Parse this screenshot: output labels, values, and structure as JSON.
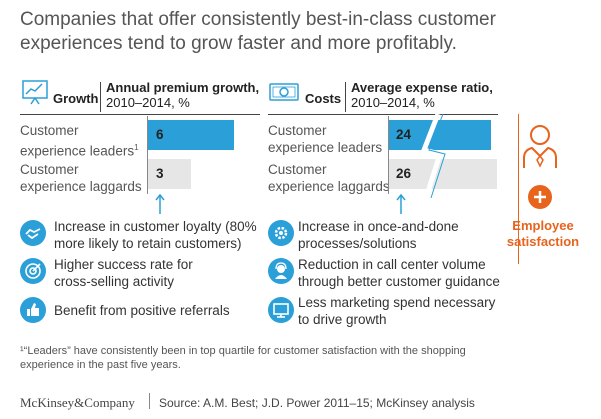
{
  "title": "Companies that offer consistently best-in-class customer experiences tend to grow faster and more profitably.",
  "growth": {
    "label": "Growth",
    "metric_line1": "Annual premium growth,",
    "metric_line2": "2010–2014, %"
  },
  "costs": {
    "label": "Costs",
    "metric_line1": "Average expense ratio,",
    "metric_line2": "2010–2014, %"
  },
  "rows": {
    "leaders_line1": "Customer",
    "leaders_line2": "experience leaders",
    "leaders_footnote_mark": "1",
    "laggards_line1": "Customer",
    "laggards_line2": "experience laggards"
  },
  "growth_bullets": [
    {
      "line1": "Increase in customer loyalty (80%",
      "line2": "more likely to retain customers)",
      "icon": "handshake-icon"
    },
    {
      "line1": "Higher success rate for",
      "line2": "cross-selling activity",
      "icon": "target-icon"
    },
    {
      "line1": "Benefit from positive referrals",
      "line2": "",
      "icon": "thumbs-up-icon"
    }
  ],
  "cost_bullets": [
    {
      "line1": "Increase in once-and-done",
      "line2": "processes/solutions",
      "icon": "gear-icon"
    },
    {
      "line1": "Reduction in call center volume",
      "line2": "through better customer guidance",
      "icon": "call-center-icon"
    },
    {
      "line1": "Less marketing spend necessary",
      "line2": "to drive growth",
      "icon": "monitor-icon"
    }
  ],
  "employee": {
    "line1": "Employee",
    "line2": "satisfaction",
    "icon": "person-icon"
  },
  "footnote_line1": "¹“Leaders” have consistently been in top quartile for customer satisfaction with the shopping",
  "footnote_line2": "experience in the past five years.",
  "brand": "McKinsey&Company",
  "source": "Source: A.M. Best; J.D. Power 2011–15; McKinsey analysis",
  "colors": {
    "blue": "#2a9fd8",
    "gray": "#e6e6e6",
    "orange": "#e8631c"
  },
  "chart_data": [
    {
      "type": "bar",
      "title": "Growth",
      "ylabel": "Annual premium growth, 2010–2014, %",
      "categories": [
        "Customer experience leaders",
        "Customer experience laggards"
      ],
      "values": [
        6,
        3
      ],
      "value_labels": [
        "6",
        "3"
      ]
    },
    {
      "type": "bar",
      "title": "Costs",
      "ylabel": "Average expense ratio, 2010–2014, %",
      "categories": [
        "Customer experience leaders",
        "Customer experience laggards"
      ],
      "values": [
        24,
        26
      ],
      "value_labels": [
        "24",
        "26"
      ],
      "axis_break": true
    }
  ]
}
